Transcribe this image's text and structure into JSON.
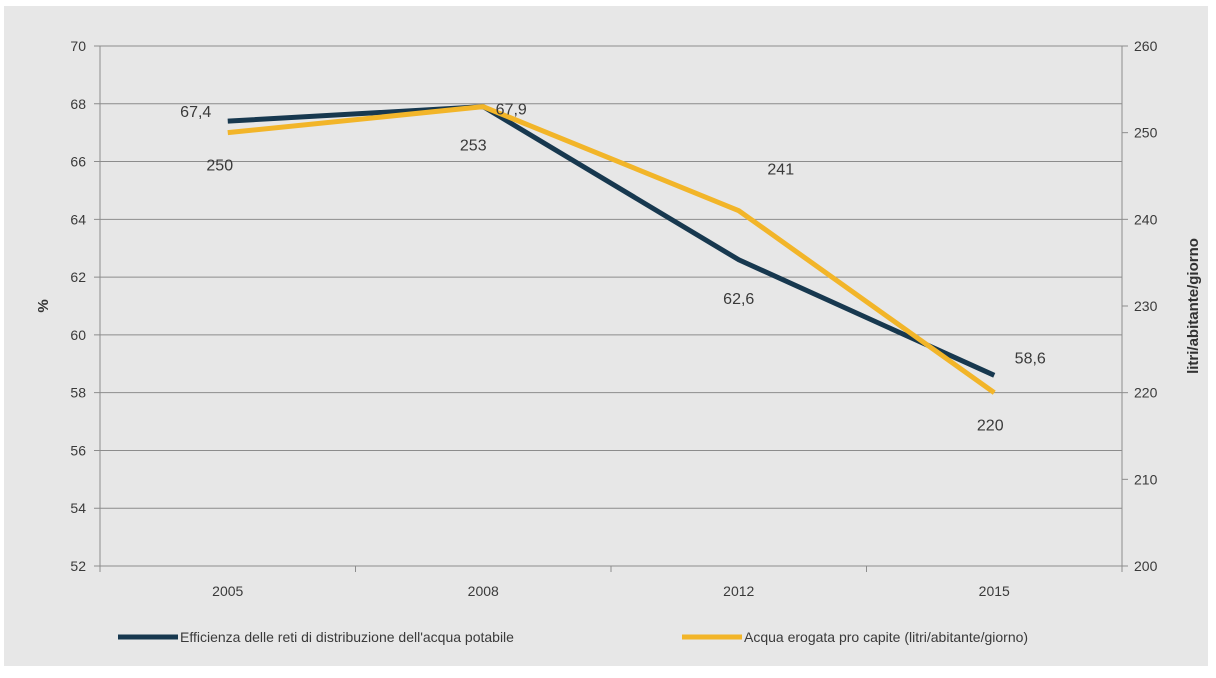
{
  "chart_data": {
    "type": "line",
    "title": "",
    "categories": [
      "2005",
      "2008",
      "2012",
      "2015"
    ],
    "y_left": {
      "label": "%",
      "range": [
        52,
        70
      ],
      "ticks": [
        "52",
        "54",
        "56",
        "58",
        "60",
        "62",
        "64",
        "66",
        "68",
        "70"
      ]
    },
    "y_right": {
      "label": "litri/abitante/giorno",
      "range": [
        200,
        260
      ],
      "ticks": [
        "200",
        "210",
        "220",
        "230",
        "240",
        "250",
        "260"
      ]
    },
    "series": [
      {
        "name": "Efficienza delle reti di distribuzione dell'acqua potabile",
        "axis": "left",
        "color": "#17384f",
        "values": [
          67.4,
          67.9,
          62.6,
          58.6
        ],
        "labels": [
          "67,4",
          "67,9",
          "62,6",
          "58,6"
        ]
      },
      {
        "name": "Acqua erogata pro capite (litri/abitante/giorno)",
        "axis": "right",
        "color": "#f2b529",
        "values": [
          250,
          253,
          241,
          220
        ],
        "labels": [
          "250",
          "253",
          "241",
          "220"
        ]
      }
    ],
    "grid": true,
    "legend_position": "bottom",
    "background": "#e7e7e7"
  }
}
